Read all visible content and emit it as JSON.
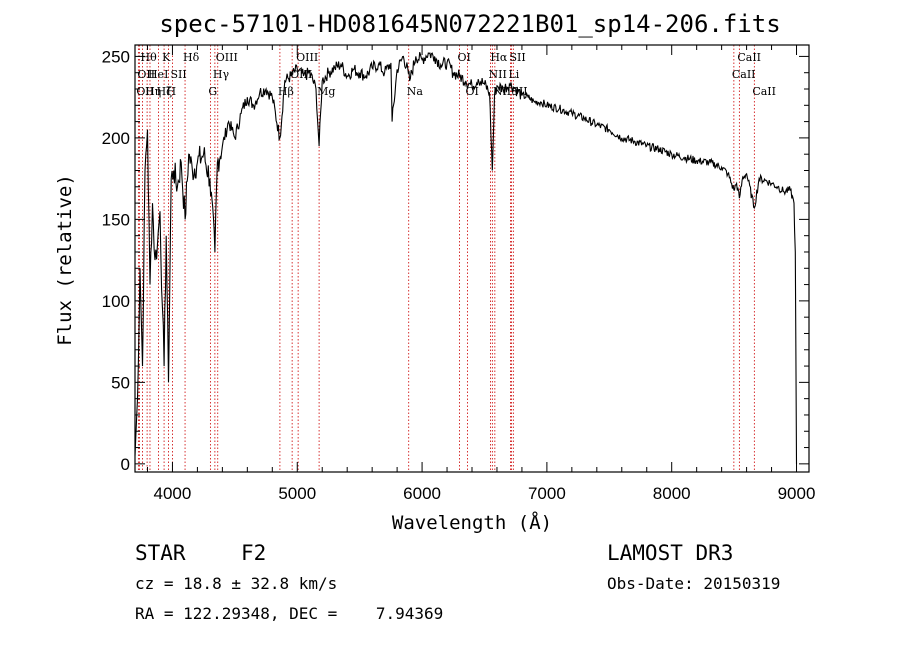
{
  "chart_data": {
    "type": "line",
    "title": "spec-57101-HD081645N072221B01_sp14-206.fits",
    "xlabel": "Wavelength (Å)",
    "ylabel": "Flux (relative)",
    "xlim": [
      3700,
      9100
    ],
    "ylim": [
      -5,
      257
    ],
    "x_ticks": [
      4000,
      5000,
      6000,
      7000,
      8000,
      9000
    ],
    "y_ticks": [
      0,
      50,
      100,
      150,
      200,
      250
    ],
    "series": [
      {
        "name": "flux",
        "x": [
          3700,
          3720,
          3740,
          3760,
          3780,
          3800,
          3820,
          3840,
          3860,
          3880,
          3900,
          3920,
          3933,
          3950,
          3968,
          3990,
          4010,
          4040,
          4070,
          4101,
          4130,
          4160,
          4200,
          4250,
          4300,
          4340,
          4360,
          4400,
          4450,
          4500,
          4550,
          4600,
          4650,
          4700,
          4750,
          4800,
          4861,
          4900,
          4950,
          5000,
          5050,
          5100,
          5150,
          5175,
          5200,
          5250,
          5300,
          5350,
          5400,
          5450,
          5500,
          5550,
          5600,
          5650,
          5700,
          5750,
          5760,
          5800,
          5850,
          5890,
          5900,
          5950,
          6000,
          6050,
          6100,
          6150,
          6200,
          6250,
          6300,
          6350,
          6400,
          6450,
          6500,
          6540,
          6563,
          6580,
          6600,
          6650,
          6700,
          6750,
          6800,
          6850,
          6900,
          6950,
          7000,
          7100,
          7200,
          7300,
          7400,
          7500,
          7600,
          7700,
          7800,
          7900,
          8000,
          8100,
          8200,
          8300,
          8400,
          8450,
          8498,
          8520,
          8542,
          8570,
          8600,
          8662,
          8700,
          8750,
          8800,
          8850,
          8900,
          8950,
          8980,
          8990,
          9000
        ],
        "y": [
          5,
          40,
          120,
          60,
          180,
          205,
          110,
          160,
          125,
          135,
          155,
          95,
          60,
          140,
          50,
          175,
          180,
          170,
          185,
          150,
          190,
          180,
          185,
          190,
          175,
          130,
          185,
          195,
          210,
          200,
          215,
          225,
          220,
          228,
          230,
          225,
          200,
          235,
          238,
          242,
          238,
          240,
          230,
          195,
          235,
          240,
          243,
          245,
          238,
          242,
          240,
          238,
          243,
          245,
          240,
          246,
          210,
          242,
          250,
          240,
          235,
          250,
          248,
          252,
          250,
          245,
          246,
          240,
          238,
          235,
          232,
          236,
          233,
          228,
          180,
          226,
          232,
          230,
          233,
          230,
          226,
          225,
          222,
          222,
          220,
          218,
          215,
          212,
          208,
          205,
          200,
          198,
          195,
          193,
          190,
          188,
          186,
          185,
          182,
          178,
          168,
          172,
          163,
          176,
          178,
          157,
          175,
          174,
          172,
          170,
          167,
          168,
          160,
          130,
          0
        ]
      }
    ],
    "spectral_lines": [
      {
        "wavelength": 3727,
        "labels": [
          "OII"
        ],
        "row": 3
      },
      {
        "wavelength": 3735,
        "labels": [
          "OII"
        ],
        "row": 2
      },
      {
        "wavelength": 3760,
        "labels": [
          "Hθ"
        ],
        "row": 1
      },
      {
        "wavelength": 3797,
        "labels": [
          "Hη"
        ],
        "row": 3
      },
      {
        "wavelength": 3820,
        "labels": [
          "HeI"
        ],
        "row": 2
      },
      {
        "wavelength": 3889,
        "labels": [
          "Hζ"
        ],
        "row": 3
      },
      {
        "wavelength": 3933,
        "labels": [
          "K"
        ],
        "row": 1
      },
      {
        "wavelength": 3968,
        "labels": [
          "H"
        ],
        "row": 3
      },
      {
        "wavelength": 4000,
        "labels": [
          "SII"
        ],
        "row": 2
      },
      {
        "wavelength": 4101,
        "labels": [
          "Hδ"
        ],
        "row": 1
      },
      {
        "wavelength": 4304,
        "labels": [
          "G"
        ],
        "row": 3
      },
      {
        "wavelength": 4340,
        "labels": [
          "Hγ"
        ],
        "row": 2
      },
      {
        "wavelength": 4363,
        "labels": [
          "OIII"
        ],
        "row": 1
      },
      {
        "wavelength": 4861,
        "labels": [
          "Hβ"
        ],
        "row": 3
      },
      {
        "wavelength": 4959,
        "labels": [
          "OIII"
        ],
        "row": 2
      },
      {
        "wavelength": 5007,
        "labels": [
          "OIII"
        ],
        "row": 1
      },
      {
        "wavelength": 5175,
        "labels": [
          "Mg"
        ],
        "row": 3
      },
      {
        "wavelength": 5893,
        "labels": [
          "Na"
        ],
        "row": 3
      },
      {
        "wavelength": 6300,
        "labels": [
          "OI"
        ],
        "row": 1
      },
      {
        "wavelength": 6364,
        "labels": [
          "OI"
        ],
        "row": 3
      },
      {
        "wavelength": 6548,
        "labels": [
          "NII"
        ],
        "row": 2
      },
      {
        "wavelength": 6563,
        "labels": [
          "Hα"
        ],
        "row": 1
      },
      {
        "wavelength": 6583,
        "labels": [
          "NII"
        ],
        "row": 3
      },
      {
        "wavelength": 6708,
        "labels": [
          "Li"
        ],
        "row": 2
      },
      {
        "wavelength": 6716,
        "labels": [
          "SII"
        ],
        "row": 1
      },
      {
        "wavelength": 6731,
        "labels": [
          "SII"
        ],
        "row": 3
      },
      {
        "wavelength": 8498,
        "labels": [
          "CaII"
        ],
        "row": 2
      },
      {
        "wavelength": 8542,
        "labels": [
          "CaII"
        ],
        "row": 1
      },
      {
        "wavelength": 8662,
        "labels": [
          "CaII"
        ],
        "row": 3
      }
    ]
  },
  "info": {
    "object_class": "STAR",
    "subclass": "F2",
    "survey": "LAMOST DR3",
    "cz": "cz = 18.8 ± 32.8 km/s",
    "obs_date": "Obs-Date: 20150319",
    "coords": "RA = 122.29348, DEC =    7.94369"
  },
  "colors": {
    "spectrum": "#000000",
    "line_markers": "#cc0000",
    "axes": "#000000"
  }
}
